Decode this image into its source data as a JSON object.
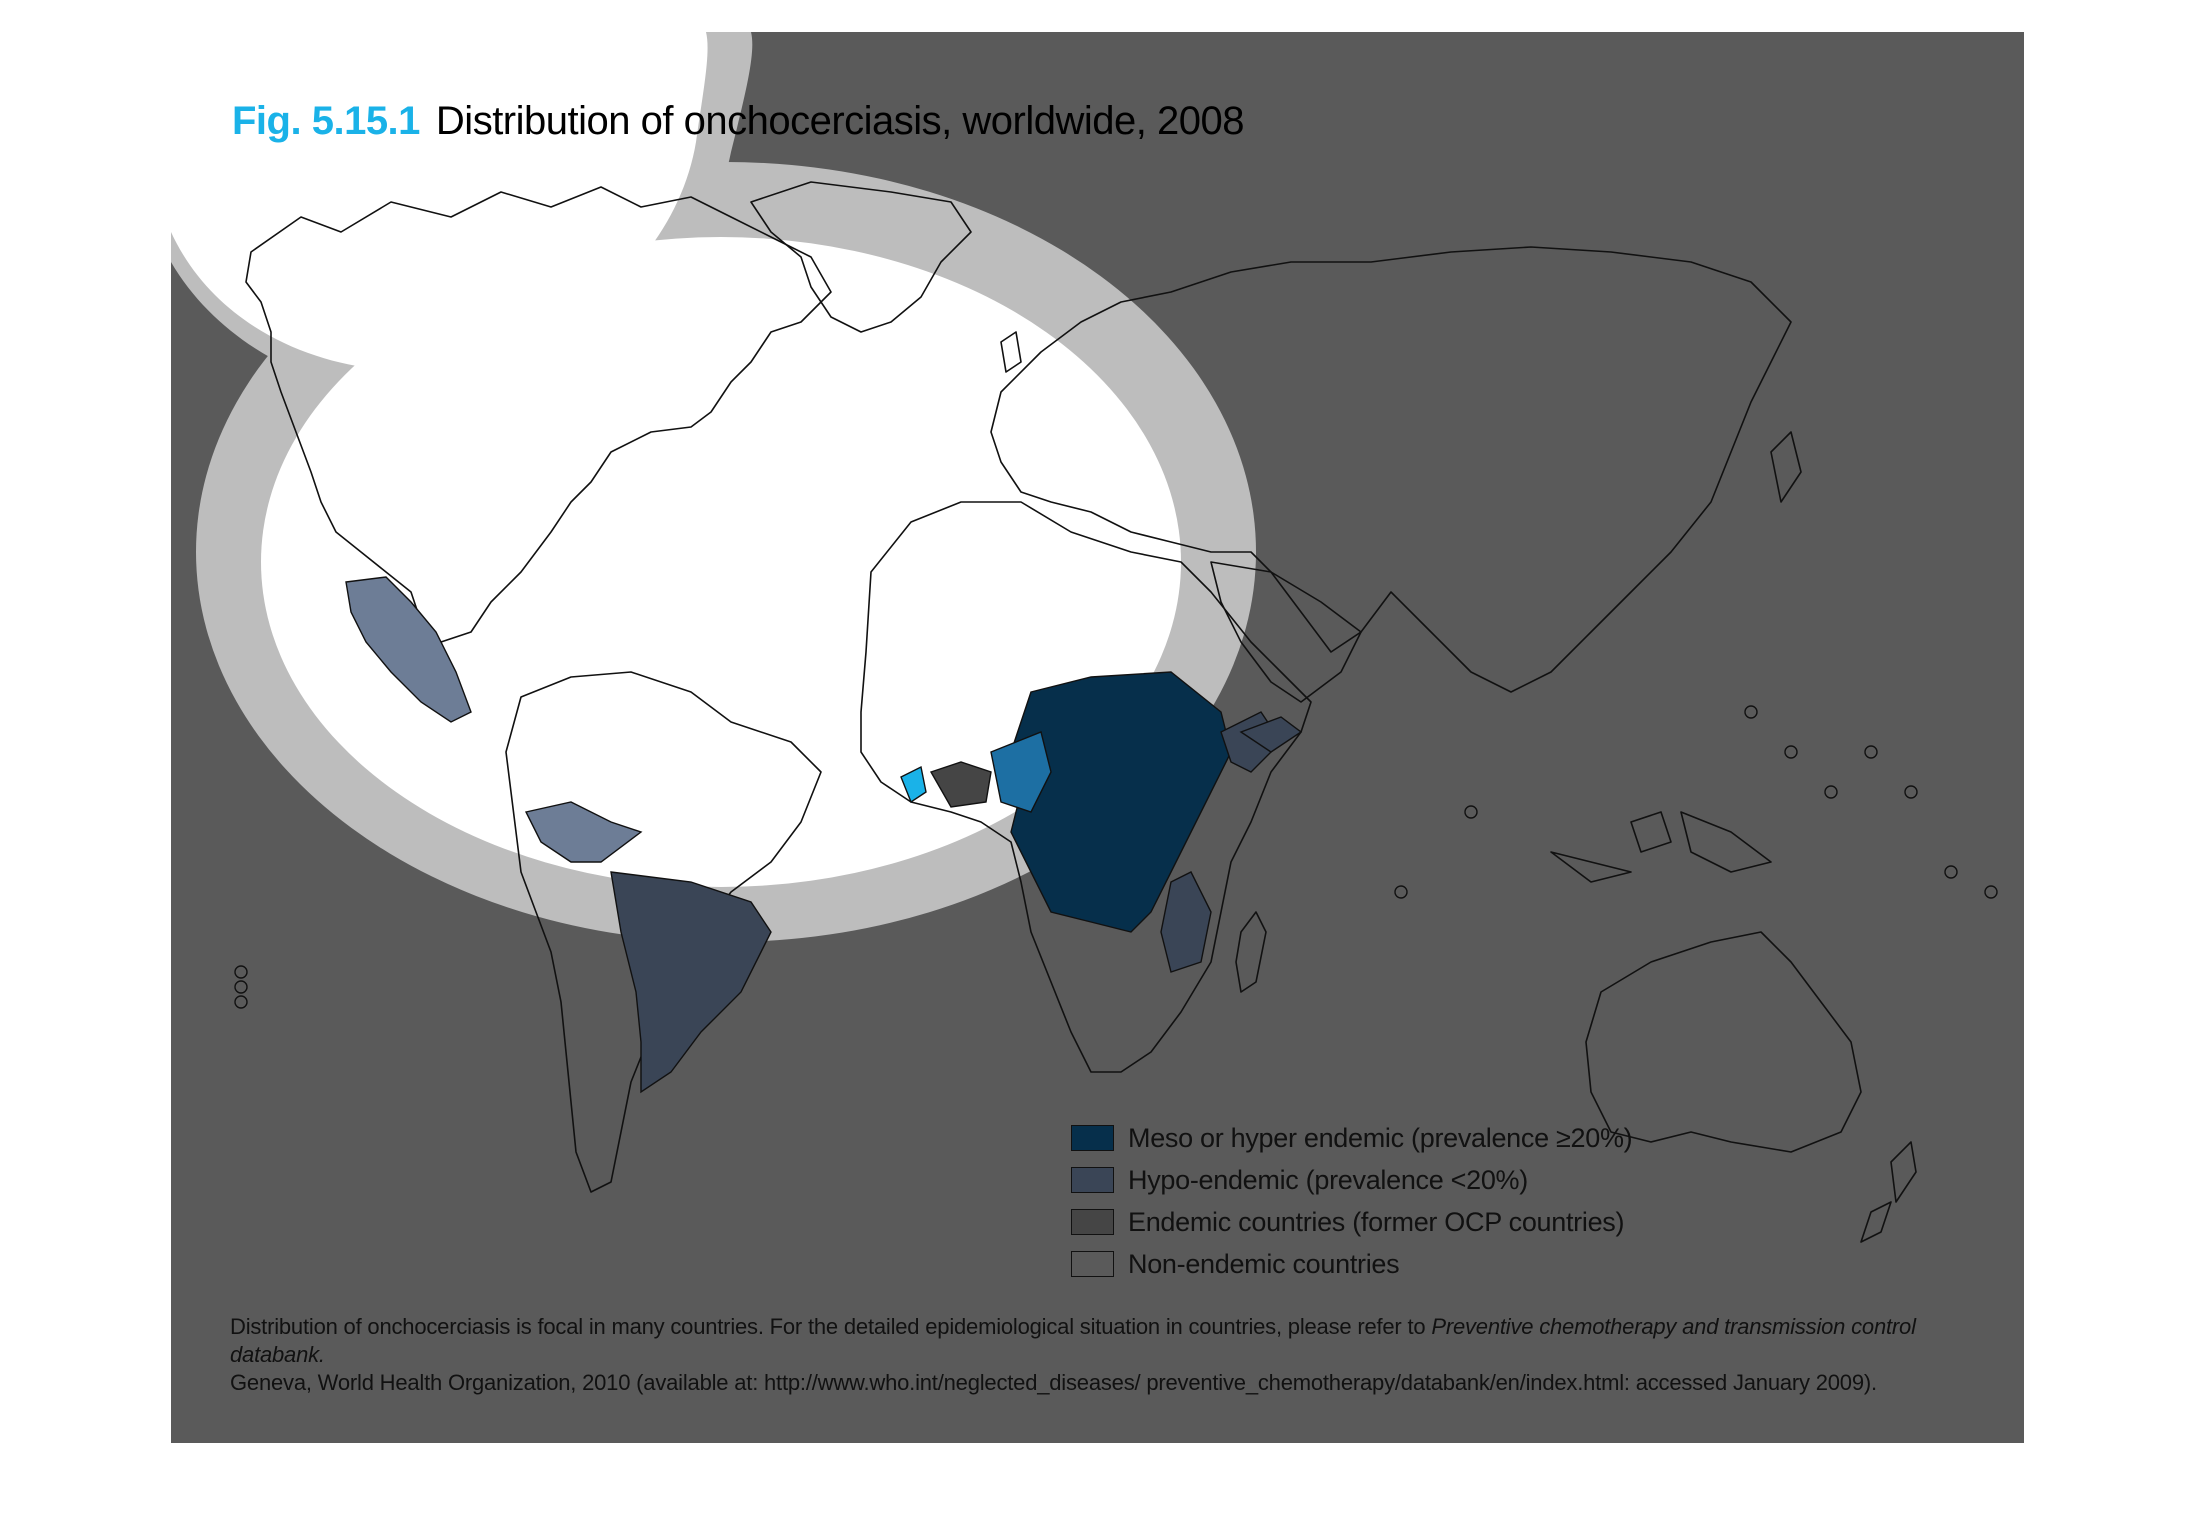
{
  "figure": {
    "label": "Fig. 5.15.1",
    "title": "Distribution of onchocerciasis, worldwide, 2008"
  },
  "legend": {
    "items": [
      {
        "label": "Meso or hyper endemic (prevalence ≥20%)",
        "color": "#062f4b"
      },
      {
        "label": "Hypo-endemic (prevalence <20%)",
        "color": "#3a4556"
      },
      {
        "label": "Endemic countries (former OCP countries)",
        "color": "#454545"
      },
      {
        "label": "Non-endemic countries",
        "color": "#5a5a5a"
      }
    ]
  },
  "footnote": {
    "text_1": "Distribution of onchocerciasis is focal in many countries. For the detailed epidemiological situation in countries, please refer to ",
    "reference": "Preventive chemotherapy and transmission control databank.",
    "text_2": "Geneva, World Health Organization, 2010 (available at: http://www.who.int/neglected_diseases/ preventive_chemotherapy/databank/en/index.html: accessed January 2009)."
  },
  "colors": {
    "panel_background": "#5a5a5a",
    "figure_label": "#1ab2e8",
    "highlight_fill": "#ffffff",
    "highlight_ring": "#bdbdbd",
    "meso_hyper_endemic": "#062f4b",
    "hypo_endemic": "#3a4556",
    "former_ocp": "#454545"
  }
}
